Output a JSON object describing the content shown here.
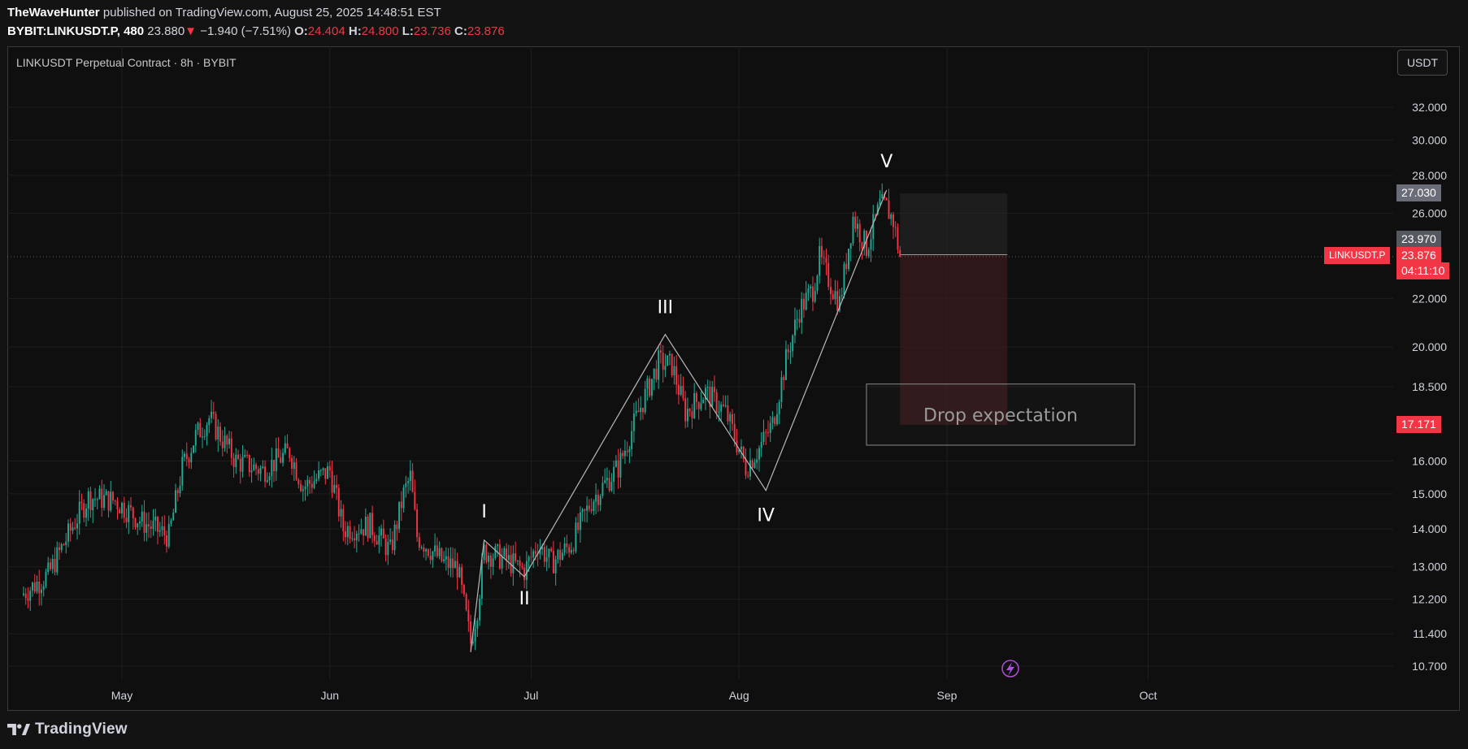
{
  "header": {
    "author": "TheWaveHunter",
    "published_text": "published on TradingView.com, August 25, 2025 14:48:51 EST",
    "symbol": "BYBIT:LINKUSDT.P, 480",
    "last": "23.880",
    "change_arrow": "▼",
    "change": "−1.940 (−7.51%)",
    "o_label": "O:",
    "o_value": "24.404",
    "h_label": "H:",
    "h_value": "24.800",
    "l_label": "L:",
    "l_value": "23.736",
    "c_label": "C:",
    "c_value": "23.876"
  },
  "chart_title": "LINKUSDT Perpetual Contract · 8h · BYBIT",
  "currency_button": "USDT",
  "branding": "TradingView",
  "price_tags": {
    "upper_box": "27.030",
    "entry": "23.970",
    "symbol_label": "LINKUSDT.P",
    "last_price": "23.876",
    "countdown": "04:11:10",
    "target": "17.171"
  },
  "annotation_box_text": "Drop expectation",
  "colors": {
    "up": "#22ab94",
    "down": "#f23645",
    "background": "#0f0f0f",
    "grid": "#1e1e1e",
    "wave_line": "#b8b8b8",
    "stop_zone": "#2a2a2a",
    "target_zone": "#3a1b1e"
  },
  "icons": [
    "tradingview-logo-icon",
    "lightning-icon"
  ],
  "chart_data": {
    "type": "candlestick",
    "title": "LINKUSDT Perpetual Contract · 8h · BYBIT",
    "y_scale": "log",
    "ylim": [
      10.4,
      33.5
    ],
    "y_ticks": [
      32.0,
      30.0,
      28.0,
      26.0,
      22.0,
      20.0,
      18.5,
      16.0,
      15.0,
      14.0,
      13.0,
      12.2,
      11.4,
      10.7
    ],
    "y_tick_labels": [
      "32.000",
      "30.000",
      "28.000",
      "26.000",
      "22.000",
      "20.000",
      "18.500",
      "16.000",
      "15.000",
      "14.000",
      "13.000",
      "12.200",
      "11.400",
      "10.700"
    ],
    "x_axis_labels": [
      {
        "label": "May",
        "date": "2025-05-01"
      },
      {
        "label": "Jun",
        "date": "2025-06-01"
      },
      {
        "label": "Jul",
        "date": "2025-07-01"
      },
      {
        "label": "Aug",
        "date": "2025-08-01"
      },
      {
        "label": "Sep",
        "date": "2025-09-01"
      },
      {
        "label": "Oct",
        "date": "2025-10-01"
      }
    ],
    "x_range": [
      "2025-04-16",
      "2025-10-10"
    ],
    "interval": "8h",
    "last_close": 23.876,
    "price_path": [
      [
        "2025-04-16",
        12.3
      ],
      [
        "2025-04-20",
        12.8
      ],
      [
        "2025-04-24",
        14.2
      ],
      [
        "2025-04-26",
        14.9
      ],
      [
        "2025-04-30",
        14.8
      ],
      [
        "2025-05-04",
        14.2
      ],
      [
        "2025-05-08",
        13.8
      ],
      [
        "2025-05-10",
        15.8
      ],
      [
        "2025-05-12",
        16.8
      ],
      [
        "2025-05-14",
        17.4
      ],
      [
        "2025-05-18",
        16.0
      ],
      [
        "2025-05-22",
        15.7
      ],
      [
        "2025-05-26",
        16.3
      ],
      [
        "2025-05-28",
        15.2
      ],
      [
        "2025-06-01",
        15.7
      ],
      [
        "2025-06-03",
        14.0
      ],
      [
        "2025-06-07",
        14.1
      ],
      [
        "2025-06-10",
        13.4
      ],
      [
        "2025-06-12",
        15.0
      ],
      [
        "2025-06-13",
        15.5
      ],
      [
        "2025-06-14",
        13.8
      ],
      [
        "2025-06-18",
        13.1
      ],
      [
        "2025-06-20",
        13.0
      ],
      [
        "2025-06-22",
        11.2
      ],
      [
        "2025-06-23",
        12.0
      ],
      [
        "2025-06-24",
        13.4
      ],
      [
        "2025-06-27",
        13.2
      ],
      [
        "2025-06-30",
        12.9
      ],
      [
        "2025-07-02",
        13.6
      ],
      [
        "2025-07-04",
        13.1
      ],
      [
        "2025-07-07",
        13.6
      ],
      [
        "2025-07-10",
        14.8
      ],
      [
        "2025-07-14",
        15.8
      ],
      [
        "2025-07-17",
        17.6
      ],
      [
        "2025-07-20",
        19.4
      ],
      [
        "2025-07-22",
        19.3
      ],
      [
        "2025-07-24",
        17.6
      ],
      [
        "2025-07-27",
        18.3
      ],
      [
        "2025-07-30",
        17.6
      ],
      [
        "2025-08-02",
        15.8
      ],
      [
        "2025-08-04",
        16.4
      ],
      [
        "2025-08-06",
        17.2
      ],
      [
        "2025-08-08",
        19.5
      ],
      [
        "2025-08-10",
        21.5
      ],
      [
        "2025-08-12",
        22.4
      ],
      [
        "2025-08-13",
        23.8
      ],
      [
        "2025-08-15",
        22.4
      ],
      [
        "2025-08-16",
        21.8
      ],
      [
        "2025-08-18",
        25.8
      ],
      [
        "2025-08-20",
        24.3
      ],
      [
        "2025-08-22",
        26.4
      ],
      [
        "2025-08-23",
        26.3
      ],
      [
        "2025-08-24",
        25.6
      ],
      [
        "2025-08-25",
        23.876
      ]
    ],
    "elliott_waves": [
      {
        "label": "I",
        "date": "2025-06-24",
        "price": 13.7
      },
      {
        "label": "II",
        "date": "2025-06-30",
        "price": 12.75
      },
      {
        "label": "III",
        "date": "2025-07-21",
        "price": 20.5
      },
      {
        "label": "IV",
        "date": "2025-08-05",
        "price": 15.1
      },
      {
        "label": "V",
        "date": "2025-08-23",
        "price": 27.2
      }
    ],
    "wave_start": {
      "date": "2025-06-22",
      "price": 11.0
    },
    "short_position": {
      "start": "2025-08-25",
      "end": "2025-09-10",
      "stop": 27.03,
      "entry": 23.97,
      "target": 17.171
    },
    "drop_expectation_box": {
      "start": "2025-08-20",
      "end": "2025-09-29",
      "top": 18.6,
      "bottom": 16.5,
      "text": "Drop expectation"
    }
  }
}
